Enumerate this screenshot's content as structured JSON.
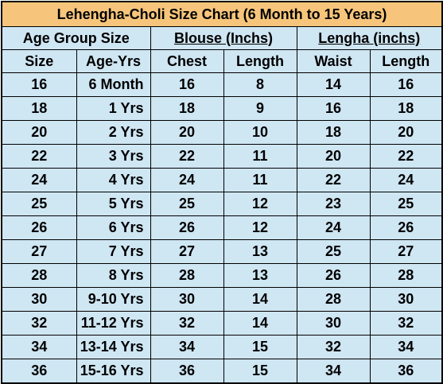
{
  "title": "Lehengha-Choli Size Chart  (6 Month to 15 Years)",
  "groups": {
    "age_group": "Age Group Size",
    "blouse": "Blouse (Inchs)",
    "lengha": "Lengha (inchs)"
  },
  "columns": [
    "Size",
    "Age-Yrs",
    "Chest",
    "Length",
    "Waist",
    "Length"
  ],
  "rows": [
    [
      "16",
      "6 Month",
      "16",
      "8",
      "14",
      "16"
    ],
    [
      "18",
      "1 Yrs",
      "18",
      "9",
      "16",
      "18"
    ],
    [
      "20",
      "2 Yrs",
      "20",
      "10",
      "18",
      "20"
    ],
    [
      "22",
      "3 Yrs",
      "22",
      "11",
      "20",
      "22"
    ],
    [
      "24",
      "4 Yrs",
      "24",
      "11",
      "22",
      "24"
    ],
    [
      "25",
      "5 Yrs",
      "25",
      "12",
      "23",
      "25"
    ],
    [
      "26",
      "6 Yrs",
      "26",
      "12",
      "24",
      "26"
    ],
    [
      "27",
      "7 Yrs",
      "27",
      "13",
      "25",
      "27"
    ],
    [
      "28",
      "8 Yrs",
      "28",
      "13",
      "26",
      "28"
    ],
    [
      "30",
      "9-10 Yrs",
      "30",
      "14",
      "28",
      "30"
    ],
    [
      "32",
      "11-12 Yrs",
      "32",
      "14",
      "30",
      "32"
    ],
    [
      "34",
      "13-14 Yrs",
      "34",
      "15",
      "32",
      "34"
    ],
    [
      "36",
      "15-16 Yrs",
      "36",
      "15",
      "34",
      "36"
    ]
  ],
  "colors": {
    "title_background": "#f6c57b",
    "cell_background": "#cfe6f3",
    "border": "#000000"
  }
}
